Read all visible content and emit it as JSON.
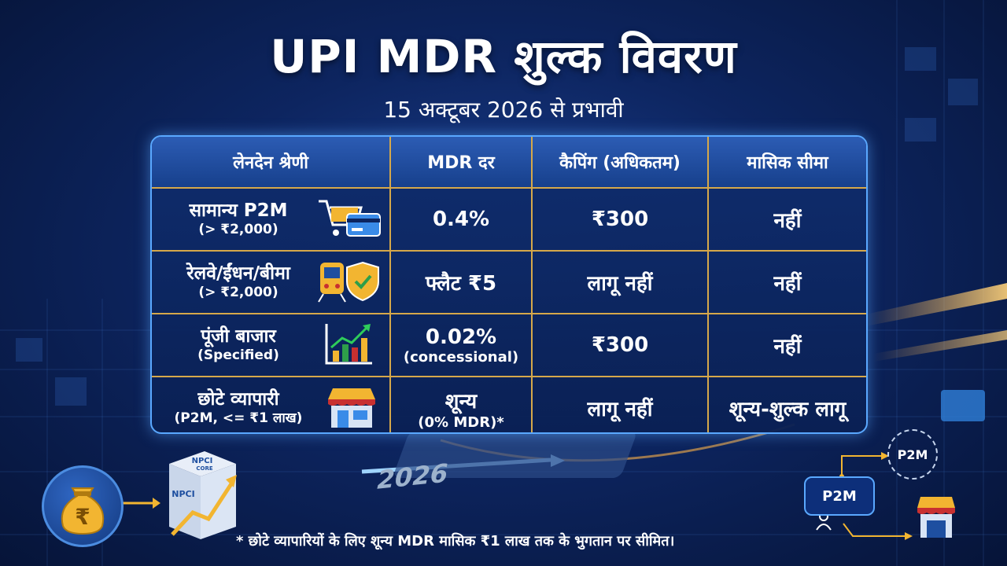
{
  "header": {
    "title": "UPI MDR शुल्क विवरण",
    "subtitle": "15 अक्टूबर 2026 से प्रभावी"
  },
  "table": {
    "columns": [
      "लेनदेन श्रेणी",
      "MDR दर",
      "कैपिंग (अधिकतम)",
      "मासिक सीमा"
    ],
    "rows": [
      {
        "category": "सामान्य P2M",
        "category_sub": "(> ₹2,000)",
        "icon": "shopping-cart-card-icon",
        "rate": "0.4%",
        "rate_sub": "",
        "cap": "₹300",
        "limit": "नहीं"
      },
      {
        "category": "रेलवे/ईंधन/बीमा",
        "category_sub": "(> ₹2,000)",
        "icon": "train-shield-icon",
        "rate": "फ्लैट ₹5",
        "rate_sub": "",
        "cap": "लागू नहीं",
        "limit": "नहीं"
      },
      {
        "category": "पूंजी बाजार",
        "category_sub": "(Specified)",
        "icon": "rising-chart-icon",
        "rate": "0.02%",
        "rate_sub": "(concessional)",
        "cap": "₹300",
        "limit": "नहीं"
      },
      {
        "category": "छोटे व्यापारी",
        "category_sub": "(P2M, <= ₹1 लाख)",
        "icon": "storefront-icon",
        "rate": "शून्य",
        "rate_sub": "(0% MDR)*",
        "cap": "लागू नहीं",
        "limit": "शून्य-शुल्क लागू"
      }
    ]
  },
  "footnote": "* छोटे व्यापारियों के लिए शून्य MDR मासिक ₹1 लाख तक के भुगतान पर सीमित।",
  "decor": {
    "money_symbol": "₹",
    "npci_top": "NPCI",
    "npci_core": "CORE",
    "npci_side": "NPCI",
    "year": "2026",
    "p2m_label": "P2M",
    "p2m_cycle_label": "P2M"
  },
  "colors": {
    "background": "#0d2560",
    "table_border": "#5aa8ff",
    "divider_gold": "#d6a84a",
    "accent_gold": "#f2b531"
  }
}
